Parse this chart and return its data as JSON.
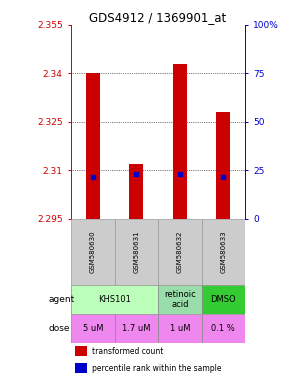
{
  "title": "GDS4912 / 1369901_at",
  "samples": [
    "GSM580630",
    "GSM580631",
    "GSM580632",
    "GSM580633"
  ],
  "red_bar_tops": [
    2.34,
    2.312,
    2.343,
    2.328
  ],
  "red_bar_bottoms": [
    2.295,
    2.295,
    2.295,
    2.295
  ],
  "blue_marker_values": [
    2.308,
    2.309,
    2.309,
    2.308
  ],
  "ylim_left": [
    2.295,
    2.355
  ],
  "yticks_left": [
    2.295,
    2.31,
    2.325,
    2.34,
    2.355
  ],
  "yticks_right": [
    0,
    25,
    50,
    75,
    100
  ],
  "ylim_right": [
    0,
    100
  ],
  "agent_groups": [
    {
      "label": "KHS101",
      "cols": [
        0,
        1
      ],
      "color": "#bbffbb"
    },
    {
      "label": "retinoic\nacid",
      "cols": [
        2,
        2
      ],
      "color": "#99ddaa"
    },
    {
      "label": "DMSO",
      "cols": [
        3,
        3
      ],
      "color": "#33cc33"
    }
  ],
  "dose_labels": [
    "5 uM",
    "1.7 uM",
    "1 uM",
    "0.1 %"
  ],
  "dose_color": "#ee88ee",
  "bar_color": "#cc0000",
  "blue_color": "#0000cc",
  "axis_left_color": "#cc0000",
  "axis_right_color": "#0000cc",
  "title_fontsize": 8.5
}
